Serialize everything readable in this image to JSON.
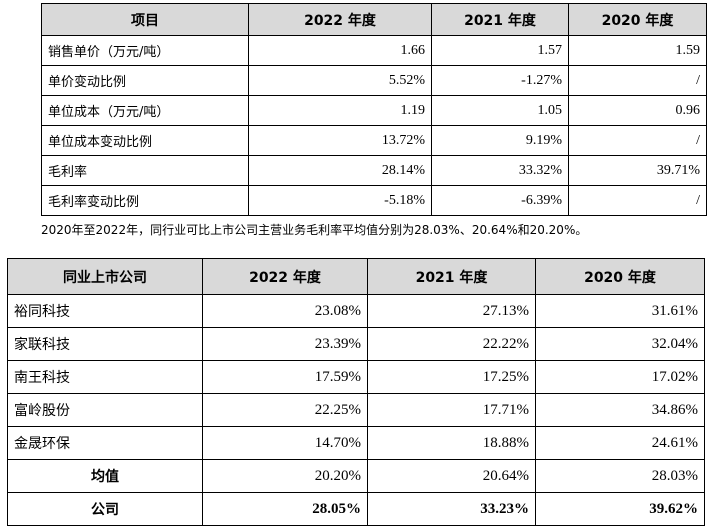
{
  "table1": {
    "headers": [
      "项目",
      "2022 年度",
      "2021 年度",
      "2020 年度"
    ],
    "rows": [
      [
        "销售单价（万元/吨）",
        "1.66",
        "1.57",
        "1.59"
      ],
      [
        "单价变动比例",
        "5.52%",
        "-1.27%",
        "/"
      ],
      [
        "单位成本（万元/吨）",
        "1.19",
        "1.05",
        "0.96"
      ],
      [
        "单位成本变动比例",
        "13.72%",
        "9.19%",
        "/"
      ],
      [
        "毛利率",
        "28.14%",
        "33.32%",
        "39.71%"
      ],
      [
        "毛利率变动比例",
        "-5.18%",
        "-6.39%",
        "/"
      ]
    ]
  },
  "note": "2020年至2022年，同行业可比上市公司主营业务毛利率平均值分别为28.03%、20.64%和20.20%。",
  "table2": {
    "headers": [
      "同业上市公司",
      "2022 年度",
      "2021 年度",
      "2020 年度"
    ],
    "rows": [
      [
        "裕同科技",
        "23.08%",
        "27.13%",
        "31.61%"
      ],
      [
        "家联科技",
        "23.39%",
        "22.22%",
        "32.04%"
      ],
      [
        "南王科技",
        "17.59%",
        "17.25%",
        "17.02%"
      ],
      [
        "富岭股份",
        "22.25%",
        "17.71%",
        "34.86%"
      ],
      [
        "金晟环保",
        "14.70%",
        "18.88%",
        "24.61%"
      ],
      [
        "均值",
        "20.20%",
        "20.64%",
        "28.03%"
      ],
      [
        "公司",
        "28.05%",
        "33.23%",
        "39.62%"
      ]
    ]
  }
}
